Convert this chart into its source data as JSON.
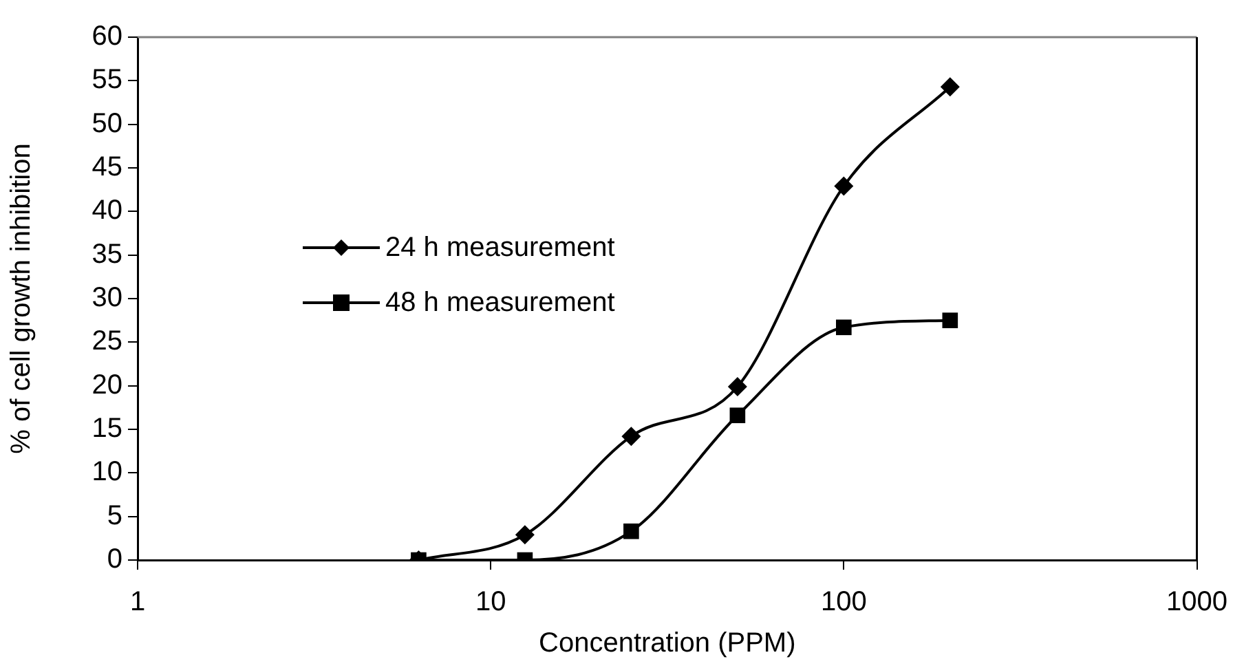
{
  "chart_data": {
    "type": "line",
    "xlabel": "Concentration (PPM)",
    "ylabel": "% of cell growth inhibition",
    "x": [
      6.25,
      12.5,
      25,
      50,
      100,
      200
    ],
    "series": [
      {
        "name": "24 h measurement",
        "color": "#000000",
        "marker": "diamond",
        "values": [
          0,
          2.9,
          14.2,
          19.9,
          42.9,
          54.3
        ]
      },
      {
        "name": "48 h measurement",
        "color": "#000000",
        "marker": "square",
        "values": [
          0,
          0,
          3.3,
          16.6,
          26.7,
          27.5
        ]
      }
    ],
    "log": "x",
    "xlim": [
      1,
      1000
    ],
    "xticks": [
      1,
      10,
      100,
      1000
    ],
    "ylim": [
      0,
      60
    ],
    "yticks": [
      0,
      5,
      10,
      15,
      20,
      25,
      30,
      35,
      40,
      45,
      50,
      55,
      60
    ],
    "grid": false,
    "legend": "left",
    "line_style": "solid"
  }
}
